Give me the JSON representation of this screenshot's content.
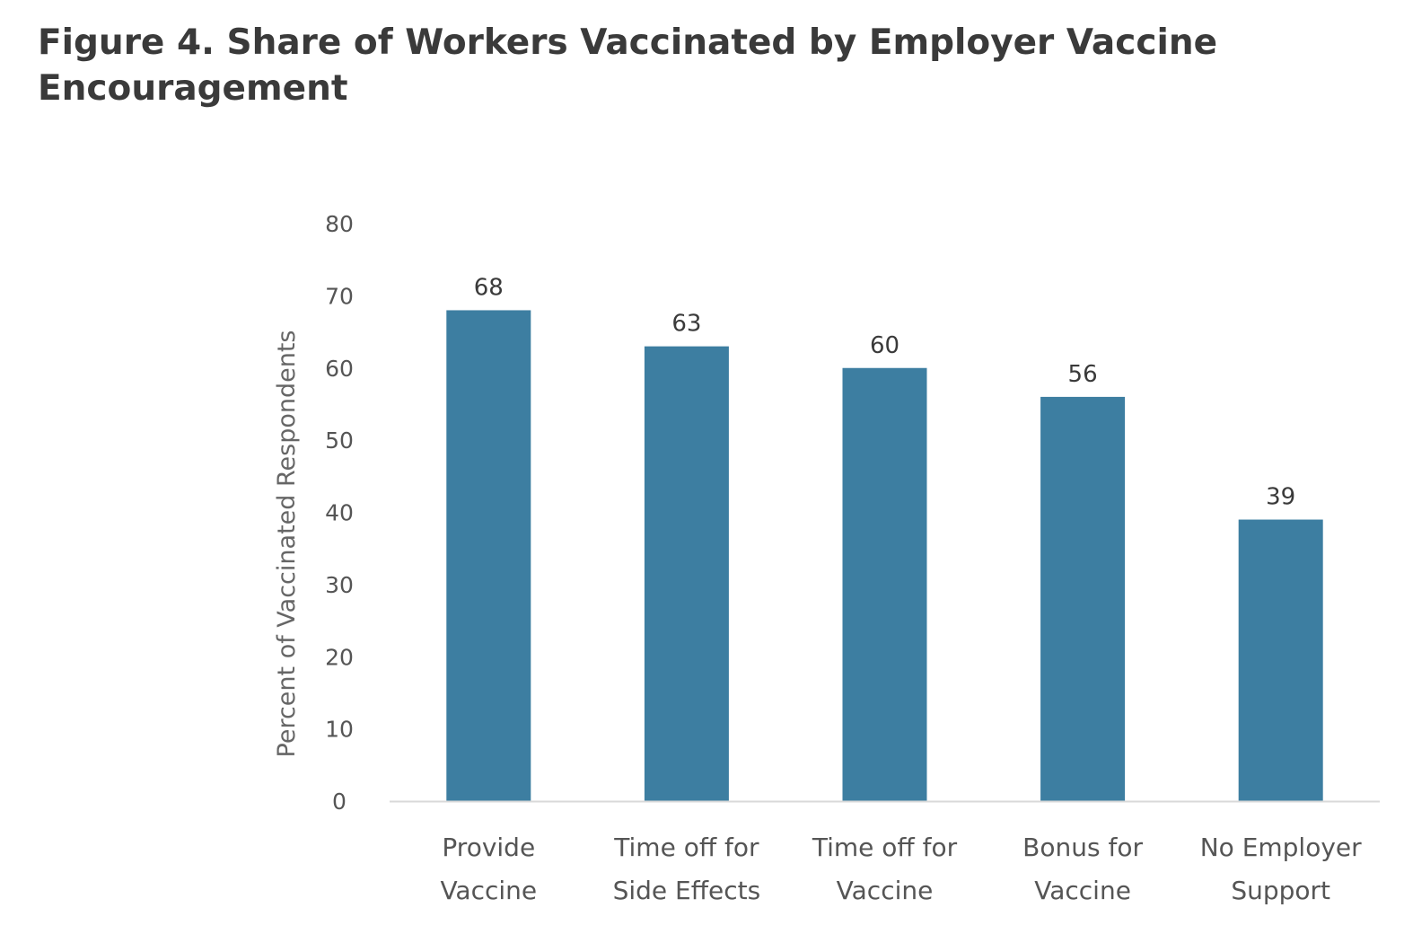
{
  "chart_data": {
    "type": "bar",
    "title": "Figure 4. Share of Workers Vaccinated by Employer Vaccine Encouragement",
    "xlabel": "",
    "ylabel": "Percent of Vaccinated Respondents",
    "categories": [
      [
        "Provide",
        "Vaccine"
      ],
      [
        "Time off for",
        "Side Effects"
      ],
      [
        "Time off for",
        "Vaccine"
      ],
      [
        "Bonus for",
        "Vaccine"
      ],
      [
        "No Employer",
        "Support"
      ]
    ],
    "values": [
      68,
      63,
      60,
      56,
      39
    ],
    "data_labels": [
      "68",
      "63",
      "60",
      "56",
      "39"
    ],
    "yticks": [
      "0",
      "10",
      "20",
      "30",
      "40",
      "50",
      "60",
      "70",
      "80"
    ],
    "ylim": [
      0,
      80
    ],
    "grid": false,
    "bar_color": "#3d7ea1",
    "axis_color": "#d9d9d9"
  }
}
